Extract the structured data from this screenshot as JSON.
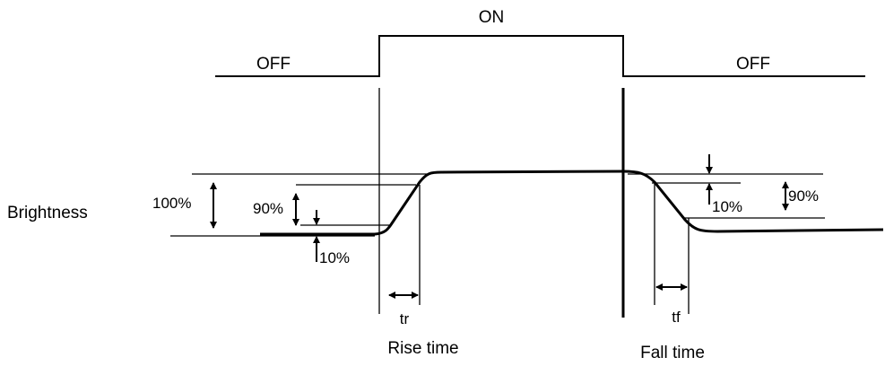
{
  "signal": {
    "on_label": "ON",
    "off_label_left": "OFF",
    "off_label_right": "OFF"
  },
  "response": {
    "axis_label": "Brightness",
    "level_100": "100%",
    "rise_90": "90%",
    "rise_10": "10%",
    "fall_10": "10%",
    "fall_90": "90%"
  },
  "timing": {
    "rise_symbol": "tr",
    "rise_caption": "Rise time",
    "fall_symbol": "tf",
    "fall_caption": "Fall time"
  }
}
